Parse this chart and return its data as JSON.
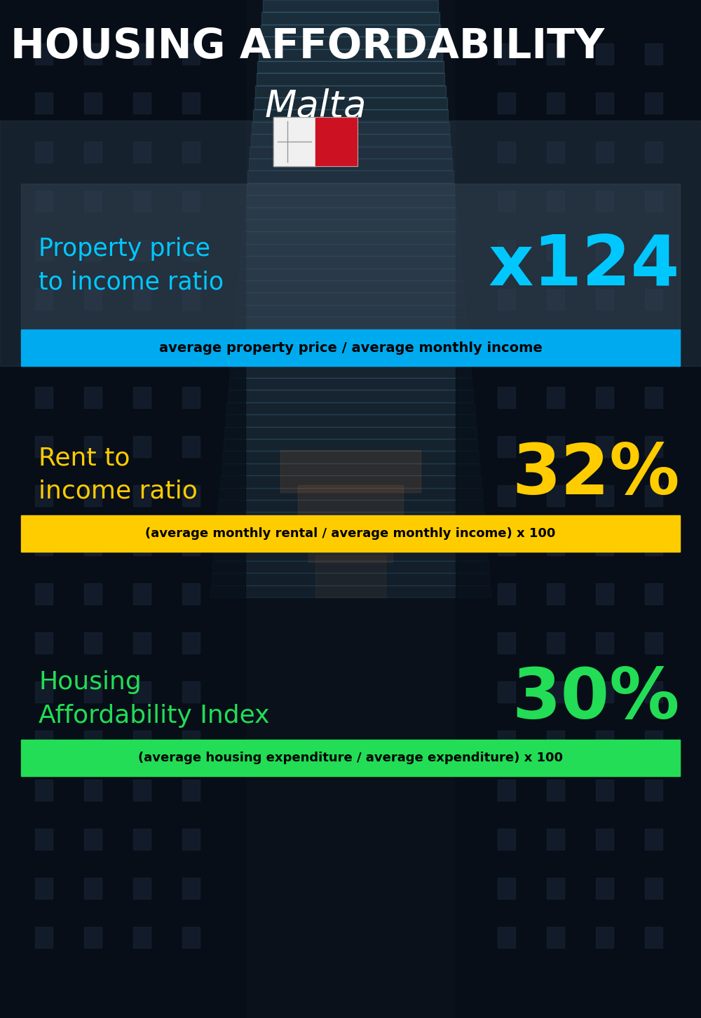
{
  "title_line1": "HOUSING AFFORDABILITY",
  "title_line2": "Malta",
  "bg_color": "#0a111a",
  "section1_label": "Property price\nto income ratio",
  "section1_value": "x124",
  "section1_label_color": "#00c8ff",
  "section1_value_color": "#00c8ff",
  "section1_banner_text": "average property price / average monthly income",
  "section1_banner_bg": "#00aaee",
  "section1_banner_text_color": "#000000",
  "section2_label": "Rent to\nincome ratio",
  "section2_value": "32%",
  "section2_label_color": "#ffcc00",
  "section2_value_color": "#ffcc00",
  "section2_banner_text": "(average monthly rental / average monthly income) x 100",
  "section2_banner_bg": "#ffcc00",
  "section2_banner_text_color": "#000000",
  "section3_label": "Housing\nAffordability Index",
  "section3_value": "30%",
  "section3_label_color": "#22dd55",
  "section3_value_color": "#22dd55",
  "section3_banner_text": "(average housing expenditure / average expenditure) x 100",
  "section3_banner_bg": "#22dd55",
  "section3_banner_text_color": "#000000",
  "title_color": "#ffffff",
  "subtitle_color": "#ffffff"
}
